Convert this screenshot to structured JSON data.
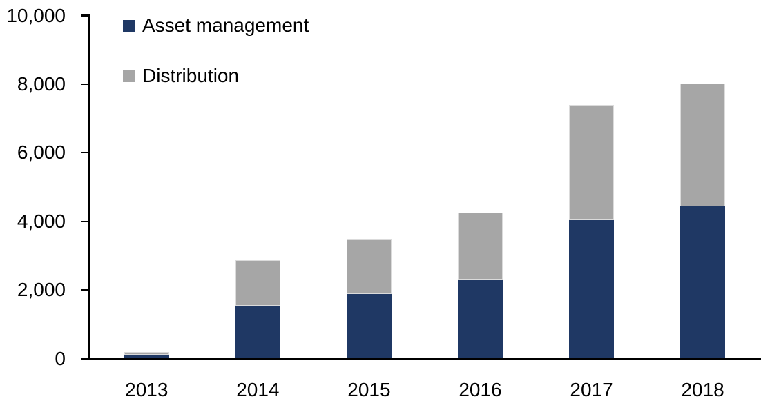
{
  "chart_data": {
    "type": "bar",
    "stacked": true,
    "title": "",
    "xlabel": "",
    "ylabel": "",
    "categories": [
      "2013",
      "2014",
      "2015",
      "2016",
      "2017",
      "2018"
    ],
    "series": [
      {
        "name": "Asset management",
        "color": "#1F3864",
        "values": [
          115,
          1540,
          1880,
          2310,
          4040,
          4430
        ]
      },
      {
        "name": "Distribution",
        "color": "#A6A6A6",
        "values": [
          85,
          1320,
          1620,
          1940,
          3360,
          3590
        ]
      }
    ],
    "ylim": [
      0,
      10000
    ],
    "yticks": [
      {
        "value": 0,
        "label": "0"
      },
      {
        "value": 2000,
        "label": "2,000"
      },
      {
        "value": 4000,
        "label": "4,000"
      },
      {
        "value": 6000,
        "label": "6,000"
      },
      {
        "value": 8000,
        "label": "8,000"
      },
      {
        "value": 10000,
        "label": "10,000"
      }
    ],
    "legend_position": "top-left",
    "grid": false,
    "axis_color": "#000000",
    "background": "#FFFFFF"
  }
}
